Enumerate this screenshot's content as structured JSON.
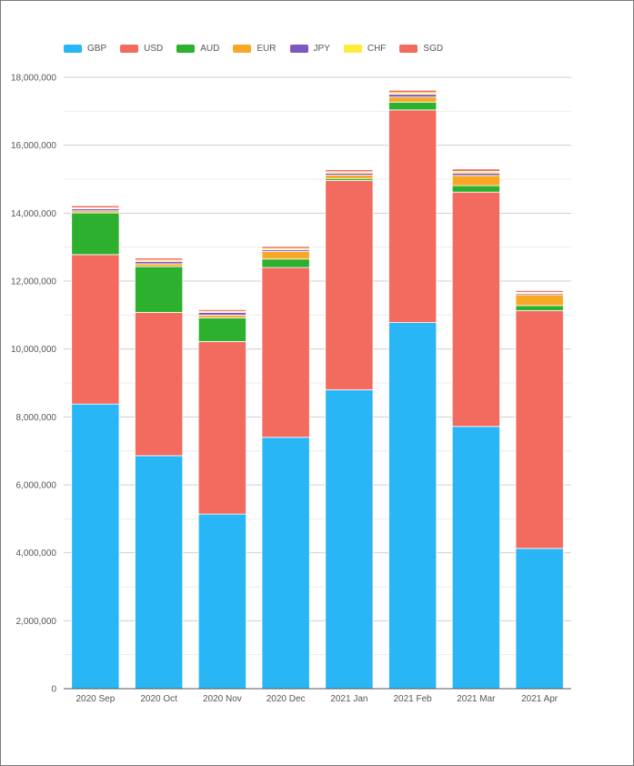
{
  "chart_data": {
    "type": "bar",
    "stacked": true,
    "categories": [
      "2020 Sep",
      "2020 Oct",
      "2020 Nov",
      "2020 Dec",
      "2021 Jan",
      "2021 Feb",
      "2021 Mar",
      "2021 Apr"
    ],
    "series": [
      {
        "name": "GBP",
        "color": "#29b6f6",
        "values": [
          8380000,
          6860000,
          5140000,
          7400000,
          8800000,
          10780000,
          7720000,
          4130000
        ]
      },
      {
        "name": "USD",
        "color": "#f26b5e",
        "values": [
          4400000,
          4220000,
          5080000,
          5000000,
          6160000,
          6260000,
          6900000,
          7000000
        ]
      },
      {
        "name": "AUD",
        "color": "#2db02d",
        "values": [
          1230000,
          1350000,
          700000,
          250000,
          60000,
          230000,
          190000,
          150000
        ]
      },
      {
        "name": "EUR",
        "color": "#f9a825",
        "values": [
          60000,
          80000,
          80000,
          220000,
          100000,
          150000,
          300000,
          320000
        ]
      },
      {
        "name": "JPY",
        "color": "#7e57c2",
        "values": [
          60000,
          70000,
          80000,
          50000,
          60000,
          80000,
          70000,
          40000
        ]
      },
      {
        "name": "CHF",
        "color": "#ffeb3b",
        "values": [
          30000,
          40000,
          30000,
          40000,
          40000,
          50000,
          50000,
          30000
        ]
      },
      {
        "name": "SGD",
        "color": "#f26b5e",
        "values": [
          60000,
          60000,
          50000,
          60000,
          60000,
          70000,
          70000,
          50000
        ]
      }
    ],
    "ylim": [
      0,
      18000000
    ],
    "yticks": [
      "0",
      "2,000,000",
      "4,000,000",
      "6,000,000",
      "8,000,000",
      "10,000,000",
      "12,000,000",
      "14,000,000",
      "16,000,000",
      "18,000,000"
    ],
    "ytick_values": [
      0,
      2000000,
      4000000,
      6000000,
      8000000,
      10000000,
      12000000,
      14000000,
      16000000,
      18000000
    ],
    "grid": true,
    "legend_position": "top-left"
  }
}
